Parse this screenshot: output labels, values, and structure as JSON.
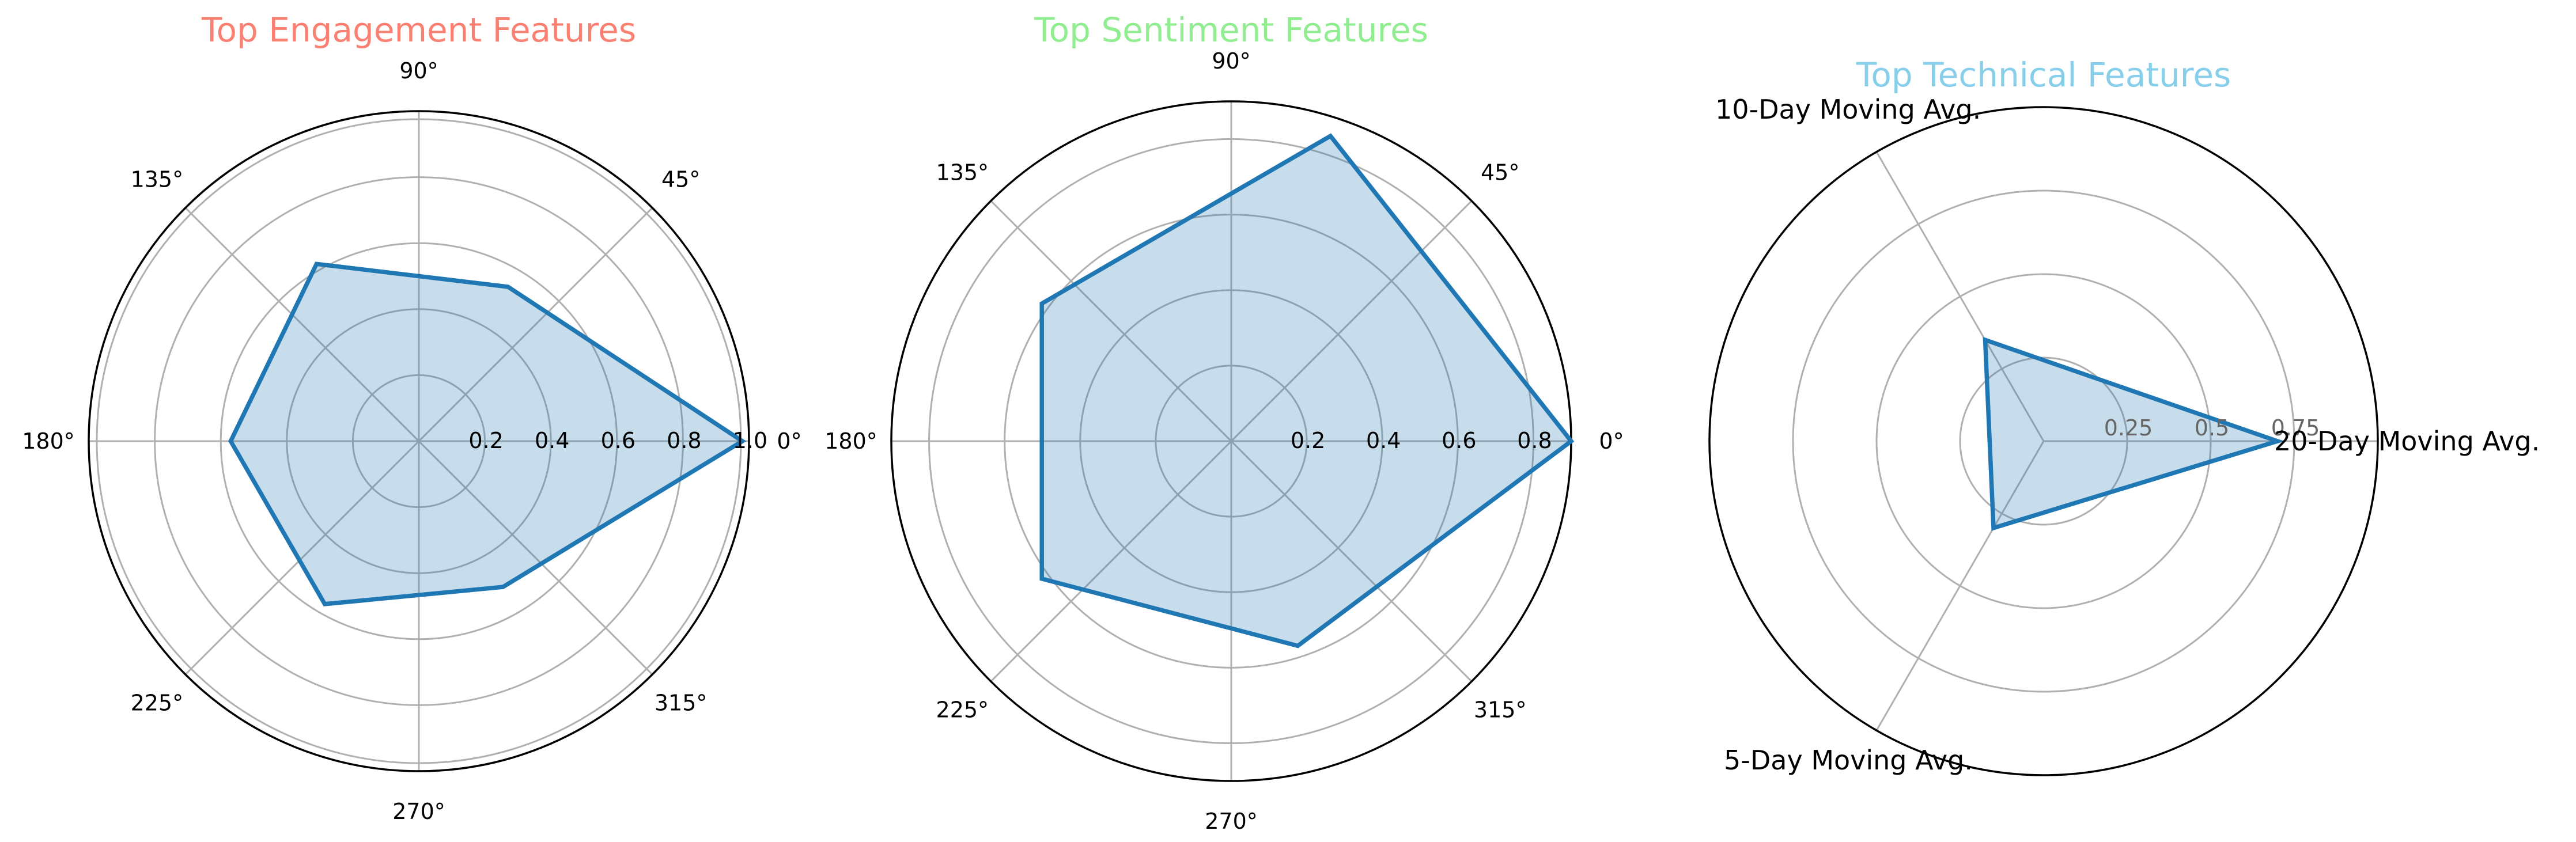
{
  "colors": {
    "series": "#1f77b4",
    "title_engagement": "#fa8072",
    "title_sentiment": "#90ee90",
    "title_technical": "#87ceeb",
    "grid": "#b0b0b0"
  },
  "chart_data": [
    {
      "type": "radar",
      "title": "Top Engagement Features",
      "angle_labels": [
        "0°",
        "45°",
        "90°",
        "135°",
        "180°",
        "225°",
        "270°",
        "315°"
      ],
      "radial_ticks": [
        "0.2",
        "0.4",
        "0.6",
        "0.8",
        "1.0"
      ],
      "rlim": [
        0,
        1.0
      ],
      "series": [
        {
          "angles_deg": [
            0,
            60,
            120,
            180,
            240,
            300
          ],
          "values": [
            0.98,
            0.54,
            0.62,
            0.57,
            0.57,
            0.51
          ]
        }
      ]
    },
    {
      "type": "radar",
      "title": "Top Sentiment Features",
      "angle_labels": [
        "0°",
        "45°",
        "90°",
        "135°",
        "180°",
        "225°",
        "270°",
        "315°"
      ],
      "radial_ticks": [
        "0.2",
        "0.4",
        "0.6",
        "0.8"
      ],
      "rlim": [
        0,
        0.9
      ],
      "series": [
        {
          "angles_deg": [
            0,
            72,
            144,
            216,
            288
          ],
          "values": [
            0.9,
            0.85,
            0.62,
            0.62,
            0.57
          ]
        }
      ]
    },
    {
      "type": "radar",
      "title": "Top Technical Features",
      "categories": [
        "20-Day Moving Avg.",
        "10-Day Moving Avg.",
        "5-Day Moving Avg."
      ],
      "radial_ticks": [
        "0.25",
        "0.5",
        "0.75"
      ],
      "rlim": [
        0,
        1.0
      ],
      "series": [
        {
          "angles_deg": [
            0,
            120,
            240
          ],
          "values": [
            0.7,
            0.35,
            0.3
          ]
        }
      ]
    }
  ]
}
